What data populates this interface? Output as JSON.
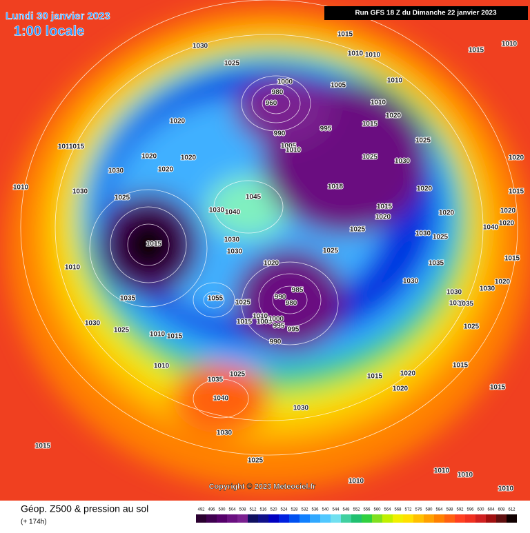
{
  "header": {
    "date": "Lundi 30 janvier 2023",
    "time": "1:00 locale",
    "run": "Run GFS 18 Z du Dimanche 22 janvier 2023"
  },
  "copyright": "Copyright © 2023 Meteociel.fr",
  "legend": {
    "title": "Géop. Z500 & pression au sol",
    "subtitle": "(+ 174h)",
    "scale": [
      {
        "value": 492,
        "color": "#2a0030"
      },
      {
        "value": 496,
        "color": "#3f0050"
      },
      {
        "value": 500,
        "color": "#55006a"
      },
      {
        "value": 504,
        "color": "#6a1080"
      },
      {
        "value": 508,
        "color": "#7a2090"
      },
      {
        "value": 512,
        "color": "#101060"
      },
      {
        "value": 516,
        "color": "#10108a"
      },
      {
        "value": 520,
        "color": "#0000c0"
      },
      {
        "value": 524,
        "color": "#0020e0"
      },
      {
        "value": 528,
        "color": "#0050f0"
      },
      {
        "value": 532,
        "color": "#1080ff"
      },
      {
        "value": 536,
        "color": "#30a8ff"
      },
      {
        "value": 540,
        "color": "#50c8ff"
      },
      {
        "value": 544,
        "color": "#70e0f0"
      },
      {
        "value": 548,
        "color": "#40d0a0"
      },
      {
        "value": 552,
        "color": "#20c070"
      },
      {
        "value": 556,
        "color": "#30d040"
      },
      {
        "value": 560,
        "color": "#80e020"
      },
      {
        "value": 564,
        "color": "#c0f000"
      },
      {
        "value": 568,
        "color": "#f0f000"
      },
      {
        "value": 572,
        "color": "#ffe000"
      },
      {
        "value": 576,
        "color": "#ffc000"
      },
      {
        "value": 580,
        "color": "#ffa000"
      },
      {
        "value": 584,
        "color": "#ff8000"
      },
      {
        "value": 588,
        "color": "#ff6010"
      },
      {
        "value": 592,
        "color": "#ff4020"
      },
      {
        "value": 596,
        "color": "#f03020"
      },
      {
        "value": 600,
        "color": "#d02020"
      },
      {
        "value": 604,
        "color": "#a01010"
      },
      {
        "value": 608,
        "color": "#601010"
      },
      {
        "value": 612,
        "color": "#100000"
      }
    ]
  },
  "pressure_labels": [
    1015,
    1010,
    1010,
    1015,
    1010,
    1030,
    1025,
    1010,
    1005,
    1000,
    980,
    960,
    1010,
    1020,
    1015,
    995,
    990,
    1005,
    1010,
    1020,
    1015,
    1015,
    1020,
    1020,
    1020,
    1030,
    1025,
    1030,
    1025,
    1020,
    1010,
    1030,
    1018,
    1020,
    1015,
    1025,
    1045,
    1015,
    1020,
    1020,
    1020,
    1030,
    1040,
    1025,
    1030,
    1040,
    1020,
    1025,
    1015,
    1030,
    1030,
    1025,
    1020,
    1035,
    1015,
    1010,
    985,
    990,
    980,
    1030,
    1030,
    1020,
    1030,
    1035,
    1055,
    1025,
    1035,
    1035,
    1010,
    1005,
    1000,
    995,
    1015,
    995,
    1030,
    1025,
    1010,
    1015,
    990,
    1025,
    1015,
    1010,
    1035,
    1025,
    1015,
    1020,
    1020,
    1015,
    1040,
    1030,
    1030,
    1015,
    1025,
    1010,
    1010,
    1010,
    1010
  ]
}
